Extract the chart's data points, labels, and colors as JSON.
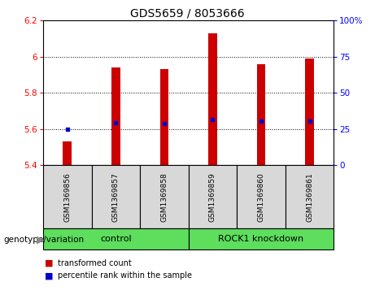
{
  "title": "GDS5659 / 8053666",
  "samples": [
    "GSM1369856",
    "GSM1369857",
    "GSM1369858",
    "GSM1369859",
    "GSM1369860",
    "GSM1369861"
  ],
  "bar_values": [
    5.53,
    5.94,
    5.93,
    6.13,
    5.96,
    5.99
  ],
  "bar_bottom": 5.4,
  "percentile_values": [
    5.601,
    5.635,
    5.632,
    5.653,
    5.642,
    5.642
  ],
  "bar_color": "#cc0000",
  "dot_color": "#0000cc",
  "ylim_left": [
    5.4,
    6.2
  ],
  "ylim_right": [
    0,
    100
  ],
  "yticks_left": [
    5.4,
    5.6,
    5.8,
    6.0,
    6.2
  ],
  "yticks_right": [
    0,
    25,
    50,
    75,
    100
  ],
  "ytick_labels_left": [
    "5.4",
    "5.6",
    "5.8",
    "6",
    "6.2"
  ],
  "ytick_labels_right": [
    "0",
    "25",
    "50",
    "75",
    "100%"
  ],
  "group_label_prefix": "genotype/variation",
  "bg_color": "#d8d8d8",
  "bar_width": 0.18,
  "title_fontsize": 10,
  "tick_fontsize": 7.5,
  "sample_fontsize": 6.5,
  "group_fontsize": 8,
  "legend_fontsize": 7
}
